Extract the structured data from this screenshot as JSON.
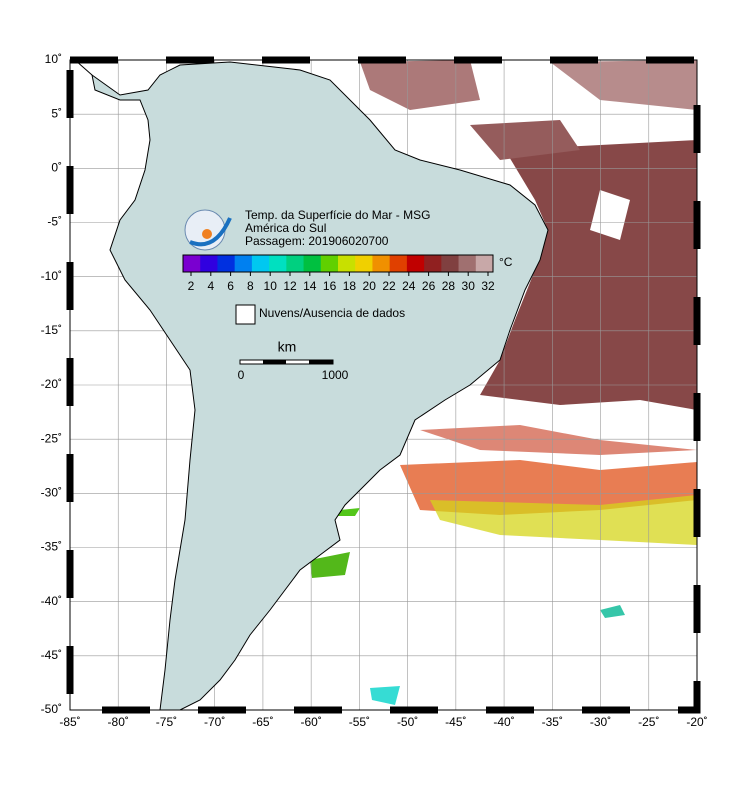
{
  "map": {
    "title": "Temp. da Superfície do Mar - MSG",
    "region": "América do Sul",
    "pass": "Passagem: 201906020700",
    "colorbar": {
      "unit": "°C",
      "ticks": [
        2,
        4,
        6,
        8,
        10,
        12,
        14,
        16,
        18,
        20,
        22,
        24,
        26,
        28,
        30,
        32
      ],
      "colors": [
        "#7a00d0",
        "#3000e0",
        "#0030e0",
        "#0080f0",
        "#00c8f0",
        "#00e0c0",
        "#00d080",
        "#00c040",
        "#60d000",
        "#c8e000",
        "#f0d000",
        "#f09000",
        "#e04000",
        "#c00000",
        "#902020",
        "#804040",
        "#a07070",
        "#c8a8a8"
      ]
    },
    "legend": "Nuvens/Ausencia de dados",
    "scale": {
      "unit": "km",
      "start": "0",
      "end": "1000"
    },
    "lon_ticks": [
      {
        "value": -85,
        "label": "-85˚"
      },
      {
        "value": -80,
        "label": "-80˚"
      },
      {
        "value": -75,
        "label": "-75˚"
      },
      {
        "value": -70,
        "label": "-70˚"
      },
      {
        "value": -65,
        "label": "-65˚"
      },
      {
        "value": -60,
        "label": "-60˚"
      },
      {
        "value": -55,
        "label": "-55˚"
      },
      {
        "value": -50,
        "label": "-50˚"
      },
      {
        "value": -45,
        "label": "-45˚"
      },
      {
        "value": -40,
        "label": "-40˚"
      },
      {
        "value": -35,
        "label": "-35˚"
      },
      {
        "value": -30,
        "label": "-30˚"
      },
      {
        "value": -25,
        "label": "-25˚"
      },
      {
        "value": -20,
        "label": "-20˚"
      }
    ],
    "lat_ticks": [
      {
        "value": 10,
        "label": "10˚"
      },
      {
        "value": 5,
        "label": "5˚"
      },
      {
        "value": 0,
        "label": "0˚"
      },
      {
        "value": -5,
        "label": "-5˚"
      },
      {
        "value": -10,
        "label": "-10˚"
      },
      {
        "value": -15,
        "label": "-15˚"
      },
      {
        "value": -20,
        "label": "-20˚"
      },
      {
        "value": -25,
        "label": "-25˚"
      },
      {
        "value": -30,
        "label": "-30˚"
      },
      {
        "value": -35,
        "label": "-35˚"
      },
      {
        "value": -40,
        "label": "-40˚"
      },
      {
        "value": -45,
        "label": "-45˚"
      },
      {
        "value": -50,
        "label": "-50˚"
      }
    ]
  }
}
